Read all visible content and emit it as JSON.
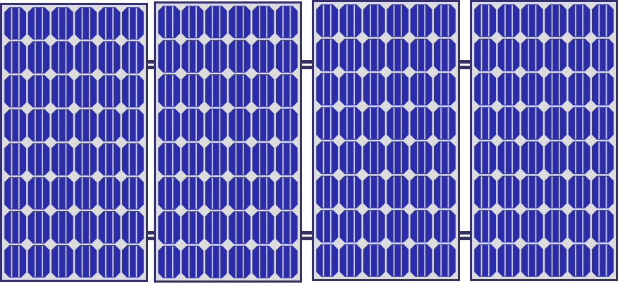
{
  "scene": {
    "subject": "solar-panel-array",
    "panel_count": 4,
    "cell_rows": 8,
    "cell_columns": 6,
    "colors": {
      "background": "#ffffff",
      "frame": "#34306a",
      "backsheet": "#dcdcdc",
      "cell": "#2a2ca8",
      "cell_busbar": "#dcdcdc",
      "connector": "#34306a"
    }
  }
}
